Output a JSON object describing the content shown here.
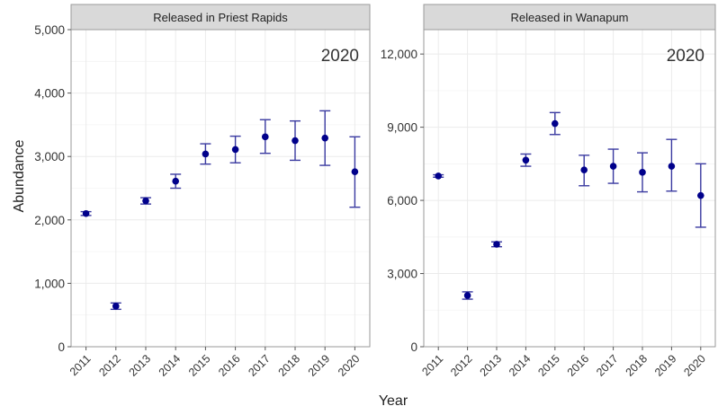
{
  "figure": {
    "xlabel": "Year",
    "ylabel": "Abundance",
    "colors": {
      "marker": "#00008b",
      "errorbar": "#3a3aa0",
      "strip": "#d9d9d9",
      "panel_border": "#9a9a9a",
      "grid": "#ebebeb"
    }
  },
  "chart_data": [
    {
      "type": "scatter",
      "title": "Released in Priest Rapids",
      "annotation": "2020",
      "categories": [
        "2011",
        "2012",
        "2013",
        "2014",
        "2015",
        "2016",
        "2017",
        "2018",
        "2019",
        "2020"
      ],
      "values": [
        2100,
        640,
        2300,
        2610,
        3040,
        3110,
        3310,
        3250,
        3290,
        2760
      ],
      "lower": [
        2070,
        590,
        2250,
        2500,
        2880,
        2900,
        3050,
        2940,
        2860,
        2200
      ],
      "upper": [
        2130,
        690,
        2350,
        2720,
        3200,
        3320,
        3580,
        3560,
        3720,
        3310
      ],
      "ylim": [
        0,
        5000
      ],
      "yticks": [
        0,
        1000,
        2000,
        3000,
        4000,
        5000
      ],
      "ytick_labels": [
        "0",
        "1,000",
        "2,000",
        "3,000",
        "4,000",
        "5,000"
      ],
      "grid": true
    },
    {
      "type": "scatter",
      "title": "Released in Wanapum",
      "annotation": "2020",
      "categories": [
        "2011",
        "2012",
        "2013",
        "2014",
        "2015",
        "2016",
        "2017",
        "2018",
        "2019",
        "2020"
      ],
      "values": [
        7000,
        2100,
        4200,
        7650,
        9150,
        7250,
        7400,
        7150,
        7400,
        6200
      ],
      "lower": [
        6950,
        1950,
        4100,
        7400,
        8700,
        6600,
        6700,
        6350,
        6380,
        4900
      ],
      "upper": [
        7050,
        2250,
        4300,
        7900,
        9600,
        7850,
        8100,
        7950,
        8500,
        7500
      ],
      "ylim": [
        0,
        13000
      ],
      "yticks": [
        0,
        3000,
        6000,
        9000,
        12000
      ],
      "ytick_labels": [
        "0",
        "3,000",
        "6,000",
        "9,000",
        "12,000"
      ],
      "grid": true
    }
  ]
}
